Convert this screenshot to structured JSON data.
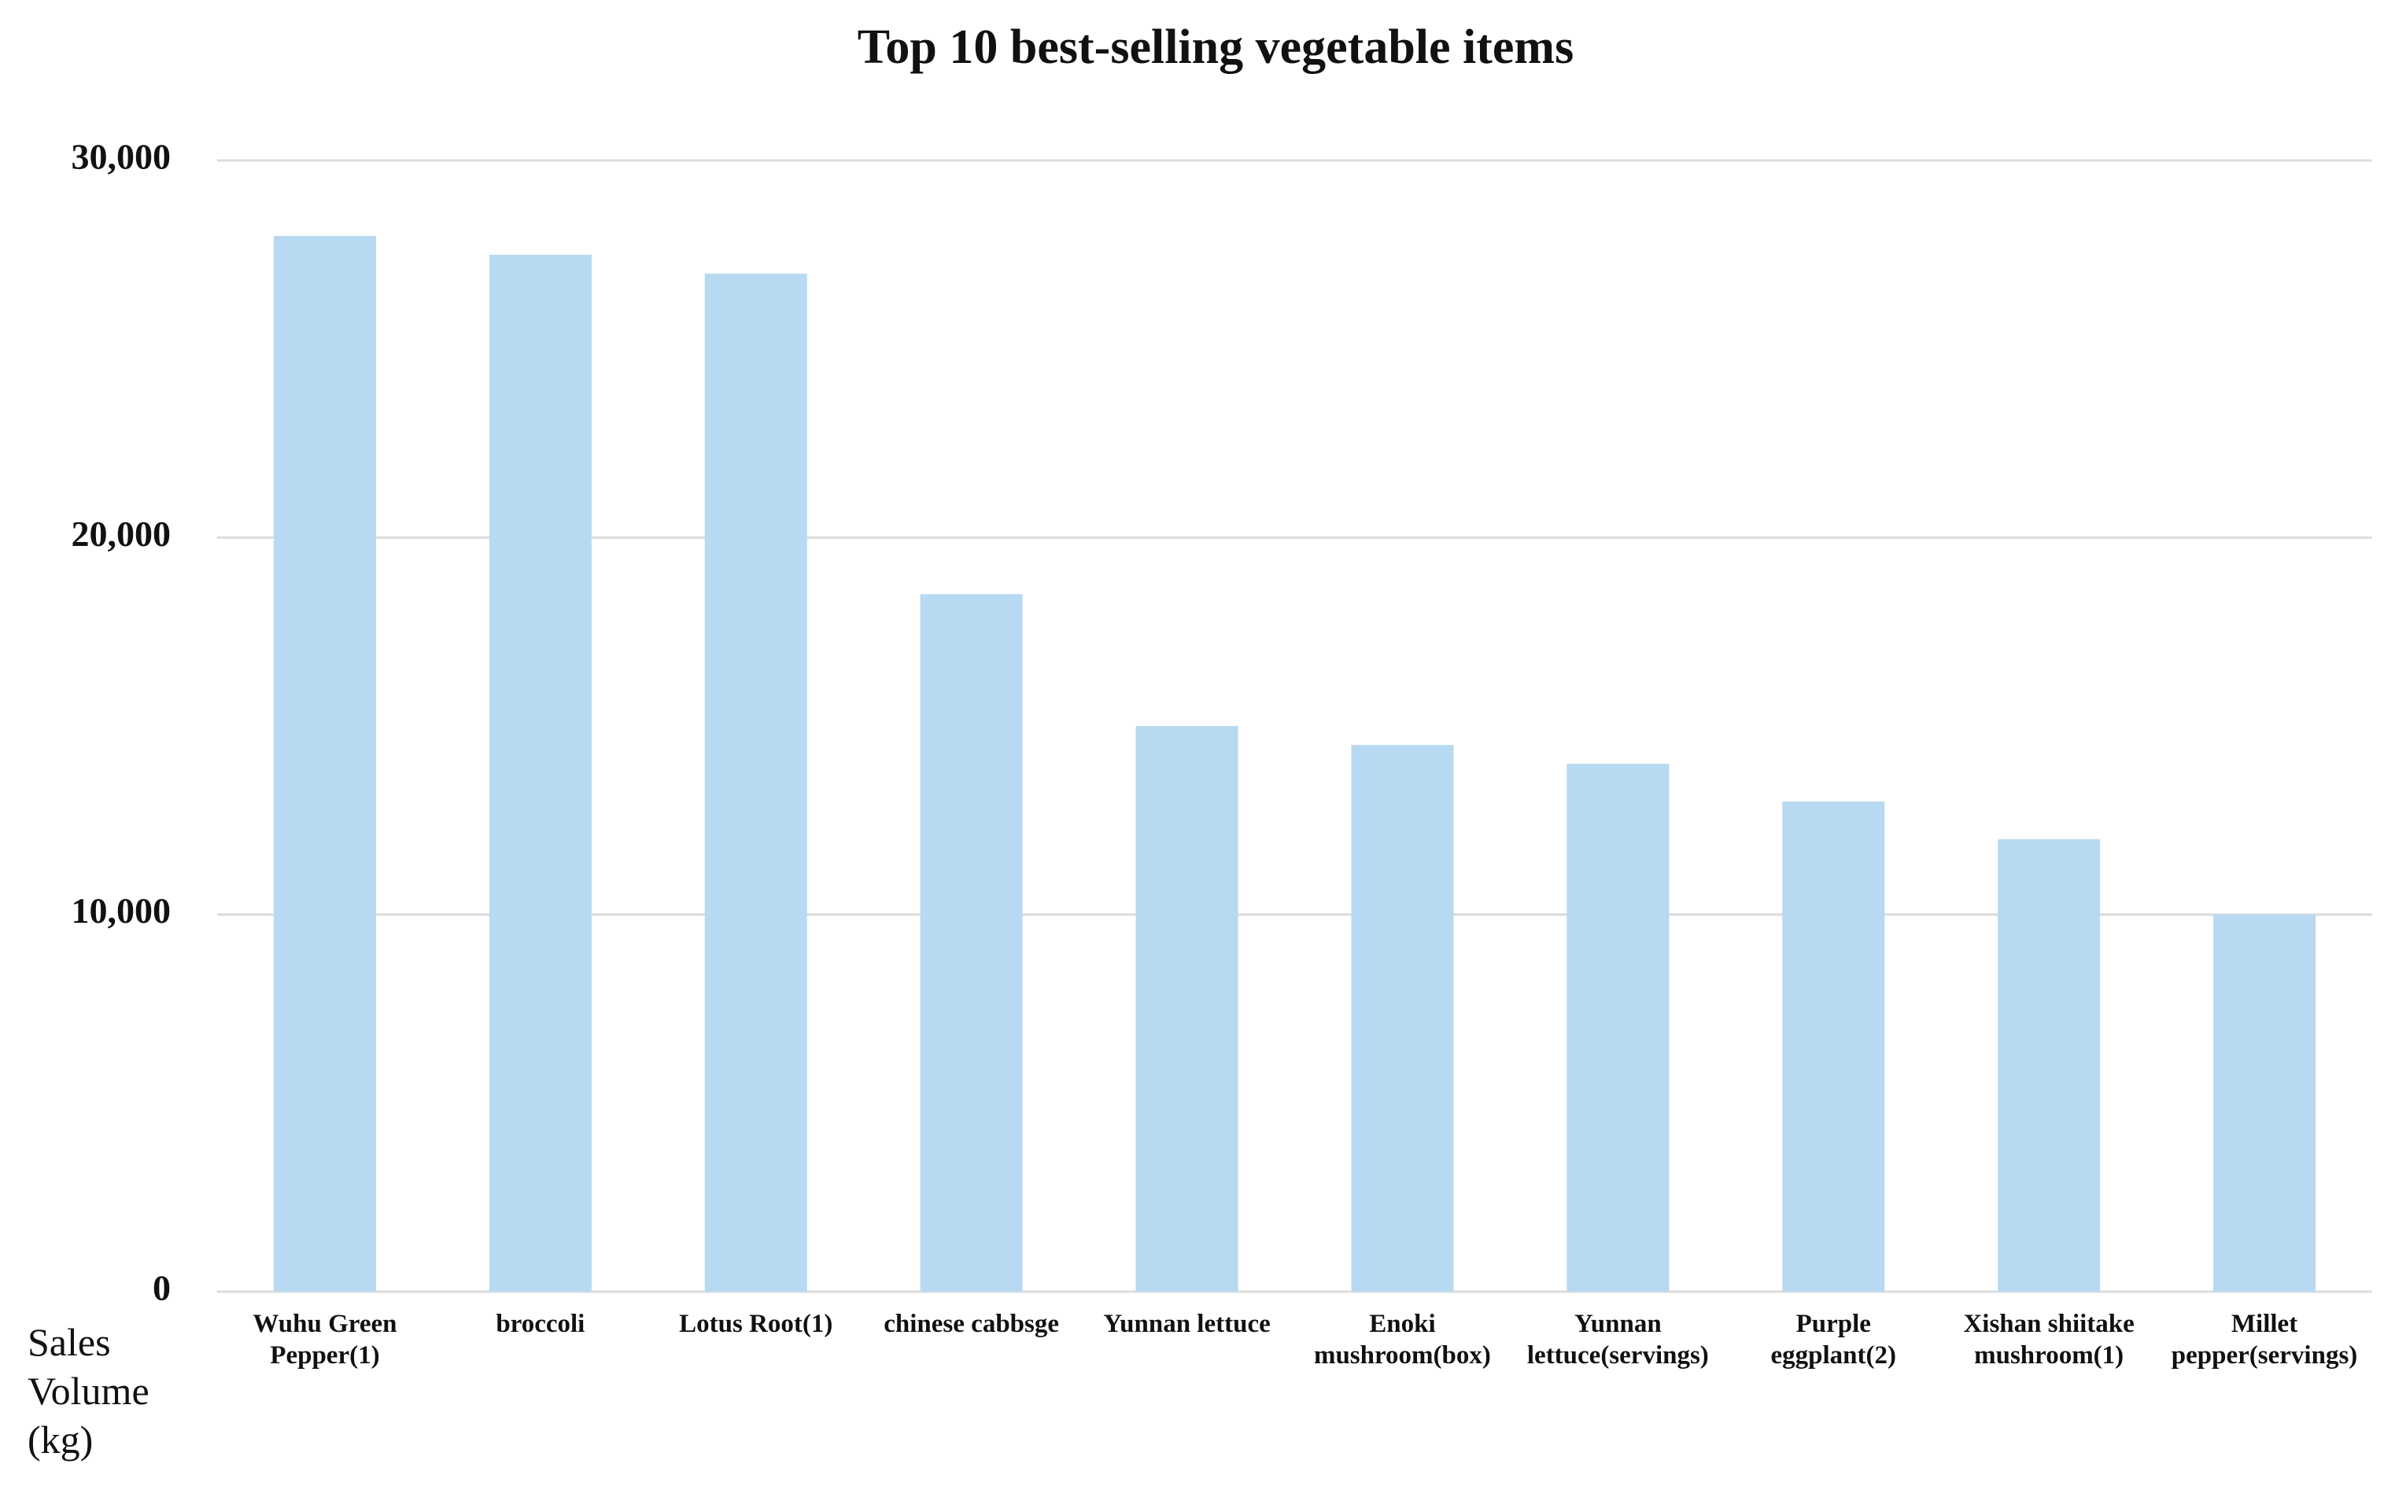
{
  "chart_data": {
    "type": "bar",
    "title": "Top 10 best-selling vegetable items",
    "y_label": "Sales Volume (kg)",
    "categories": [
      "Wuhu Green Pepper(1)",
      "broccoli",
      "Lotus Root(1)",
      "chinese cabbsge",
      "Yunnan lettuce",
      "Enoki mushroom(box)",
      "Yunnan lettuce(servings)",
      "Purple eggplant(2)",
      "Xishan shiitake mushroom(1)",
      "Millet pepper(servings)"
    ],
    "values": [
      28000,
      27500,
      27000,
      18500,
      15000,
      14500,
      14000,
      13000,
      12000,
      10000
    ],
    "color": "#b7d9f1",
    "ylim": [
      0,
      30000
    ],
    "yticks": [
      0,
      {
        "value": 10000,
        "label": "10,000"
      },
      {
        "value": 20000,
        "label": "20,000"
      },
      {
        "value": 30000,
        "label": "30,000"
      }
    ],
    "grid": true
  }
}
